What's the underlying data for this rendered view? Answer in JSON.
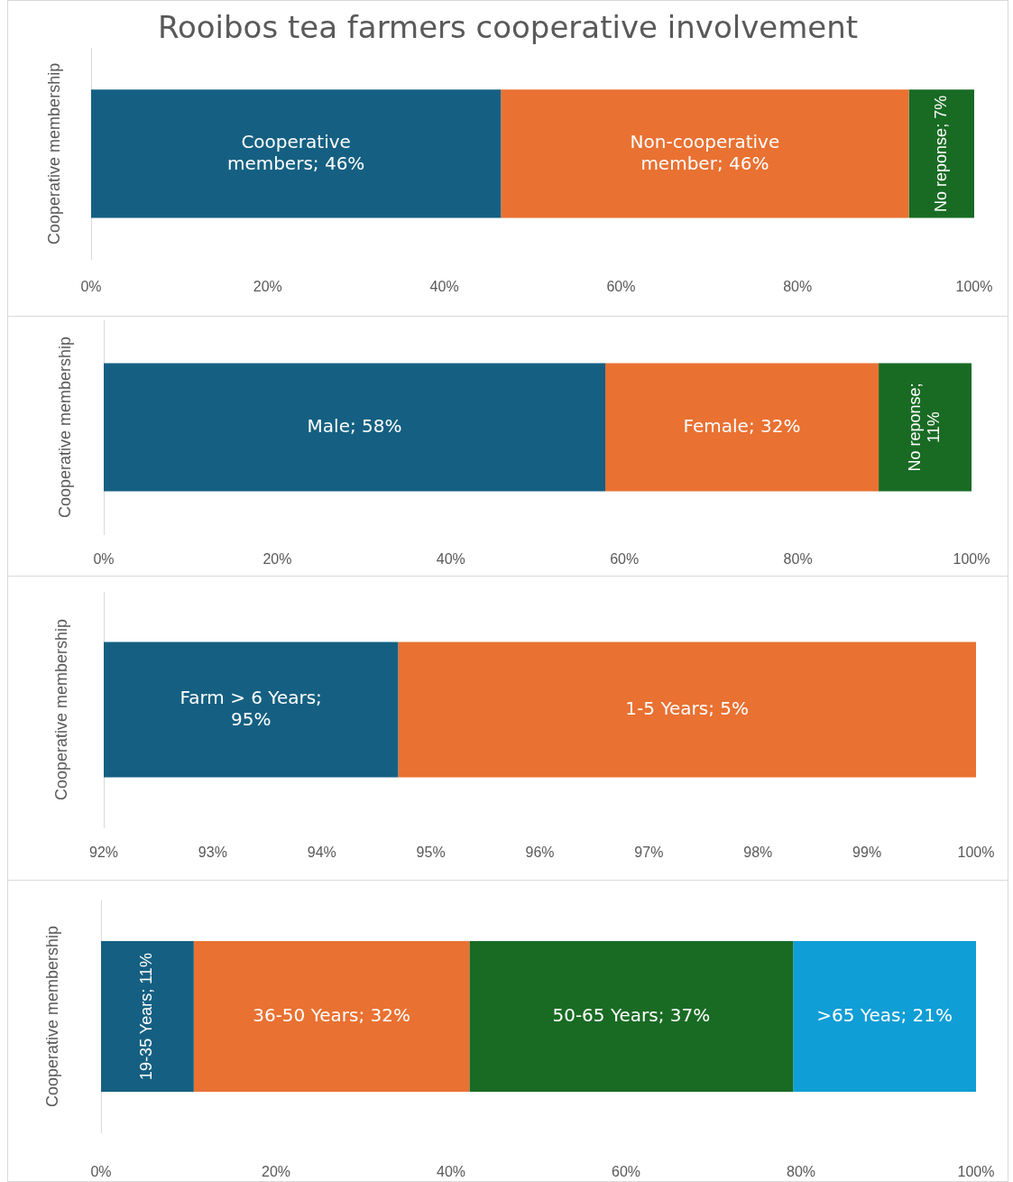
{
  "chart_data": [
    {
      "type": "bar",
      "orientation": "horizontal",
      "stacked": true,
      "title": "Rooibos tea farmers cooperative involvement",
      "ylabel": "Cooperative membership",
      "categories": [
        null
      ],
      "series": [
        {
          "color": "#156082",
          "values": [
            46.4
          ],
          "value_labels": [
            "Cooperative members; 46%"
          ]
        },
        {
          "color": "#e97132",
          "values": [
            46.2
          ],
          "value_labels": [
            "Non-cooperative member; 46%"
          ]
        },
        {
          "color": "#196b24",
          "values": [
            7.4
          ],
          "value_labels": [
            "No reponse; 7%"
          ]
        }
      ],
      "xlim": [
        0,
        100
      ],
      "xticks": [
        {
          "value": 0,
          "label": "0%"
        },
        {
          "value": 20,
          "label": "20%"
        },
        {
          "value": 40,
          "label": "40%"
        },
        {
          "value": 60,
          "label": "60%"
        },
        {
          "value": 80,
          "label": "80%"
        },
        {
          "value": 100,
          "label": "100%"
        }
      ],
      "tick_labels": "x"
    },
    {
      "type": "bar",
      "orientation": "horizontal",
      "stacked": true,
      "ylabel": "Cooperative membership",
      "categories": [
        null
      ],
      "series": [
        {
          "color": "#156082",
          "values": [
            57.8
          ],
          "value_labels": [
            "Male; 58%"
          ]
        },
        {
          "color": "#e97132",
          "values": [
            31.5
          ],
          "value_labels": [
            "Female; 32%"
          ]
        },
        {
          "color": "#196b24",
          "values": [
            10.7
          ],
          "value_labels": [
            "No reponse; 11%"
          ]
        }
      ],
      "xlim": [
        0,
        100
      ],
      "xticks": [
        {
          "value": 0,
          "label": "0%"
        },
        {
          "value": 20,
          "label": "20%"
        },
        {
          "value": 40,
          "label": "40%"
        },
        {
          "value": 60,
          "label": "60%"
        },
        {
          "value": 80,
          "label": "80%"
        },
        {
          "value": 100,
          "label": "100%"
        }
      ],
      "tick_labels": "x"
    },
    {
      "type": "bar",
      "orientation": "horizontal",
      "stacked": true,
      "ylabel": "Cooperative membership",
      "categories": [
        null
      ],
      "series": [
        {
          "color": "#156082",
          "values": [
            94.7
          ],
          "value_labels": [
            "Farm > 6 Years; 95%"
          ]
        },
        {
          "color": "#e97132",
          "values": [
            5.3
          ],
          "base": [
            94.7
          ],
          "value_labels": [
            "1-5 Years; 5%"
          ]
        }
      ],
      "xlim": [
        92,
        100
      ],
      "xticks": [
        {
          "value": 92,
          "label": "92%"
        },
        {
          "value": 93,
          "label": "93%"
        },
        {
          "value": 94,
          "label": "94%"
        },
        {
          "value": 95,
          "label": "95%"
        },
        {
          "value": 96,
          "label": "96%"
        },
        {
          "value": 97,
          "label": "97%"
        },
        {
          "value": 98,
          "label": "98%"
        },
        {
          "value": 99,
          "label": "99%"
        },
        {
          "value": 100,
          "label": "100%"
        }
      ],
      "tick_labels": "x"
    },
    {
      "type": "bar",
      "orientation": "horizontal",
      "stacked": true,
      "ylabel": "Cooperative membership",
      "categories": [
        null
      ],
      "series": [
        {
          "color": "#156082",
          "values": [
            10.6
          ],
          "value_labels": [
            "19-35 Years; 11%"
          ]
        },
        {
          "color": "#e97132",
          "values": [
            31.5
          ],
          "value_labels": [
            "36-50 Years; 32%"
          ]
        },
        {
          "color": "#196b24",
          "values": [
            37.0
          ],
          "value_labels": [
            "50-65 Years; 37%"
          ]
        },
        {
          "color": "#0f9ed5",
          "values": [
            20.9
          ],
          "value_labels": [
            ">65 Yeas; 21%"
          ]
        }
      ],
      "xlim": [
        0,
        100
      ],
      "xticks": [
        {
          "value": 0,
          "label": "0%"
        },
        {
          "value": 20,
          "label": "20%"
        },
        {
          "value": 40,
          "label": "40%"
        },
        {
          "value": 60,
          "label": "60%"
        },
        {
          "value": 80,
          "label": "80%"
        },
        {
          "value": 100,
          "label": "100%"
        }
      ],
      "tick_labels": "x"
    }
  ]
}
